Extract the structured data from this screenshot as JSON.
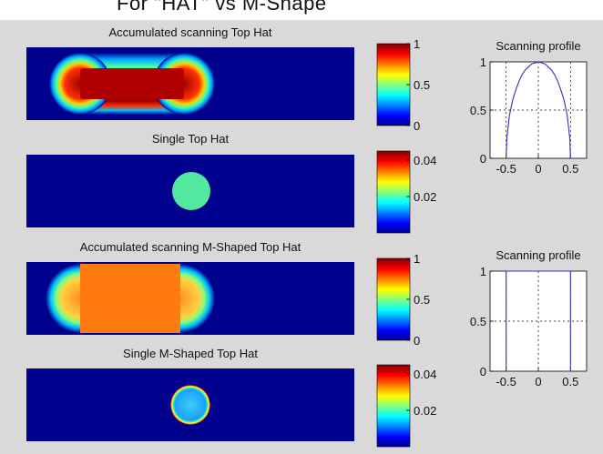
{
  "header": {
    "text": "For \"HAT\" vs M-Shape"
  },
  "colors": {
    "background": "#d9d9d9",
    "field": "#00008f",
    "jet": [
      "#00008f",
      "#0000ff",
      "#00ffff",
      "#ffff00",
      "#ff0000",
      "#800000"
    ]
  },
  "chart_data": [
    {
      "type": "heatmap",
      "id": "acc_tophat",
      "title": "Accumulated scanning Top Hat",
      "shape": "stadium",
      "fill_value": 1.0,
      "edge_profile": "tophat",
      "colorbar": {
        "ticks": [
          "0",
          "0.5",
          "1"
        ],
        "min": 0,
        "max": 1
      }
    },
    {
      "type": "heatmap",
      "id": "single_tophat",
      "title": "Single Top Hat",
      "shape": "disk",
      "fill_value": 0.022,
      "colorbar": {
        "ticks": [
          "0.02",
          "0.04"
        ],
        "min": 0,
        "max": 0.045
      }
    },
    {
      "type": "heatmap",
      "id": "acc_mshape",
      "title": "Accumulated scanning M-Shaped Top Hat",
      "shape": "stadium",
      "fill_value": 0.8,
      "edge_profile": "mshape",
      "colorbar": {
        "ticks": [
          "0",
          "0.5",
          "1"
        ],
        "min": 0,
        "max": 1
      }
    },
    {
      "type": "heatmap",
      "id": "single_mshape",
      "title": "Single M-Shaped Top Hat",
      "shape": "ring",
      "fill_value": 0.013,
      "rim_value": 0.045,
      "colorbar": {
        "ticks": [
          "0.02",
          "0.04"
        ],
        "min": 0,
        "max": 0.045
      }
    },
    {
      "type": "line",
      "id": "profile_tophat",
      "title": "Scanning profile",
      "xlim": [
        -0.75,
        0.75
      ],
      "ylim": [
        0,
        1
      ],
      "xticks": [
        "-0.5",
        "0",
        "0.5"
      ],
      "yticks": [
        "0",
        "0.5",
        "1"
      ],
      "grid": true,
      "x": [
        -0.5,
        -0.49,
        -0.45,
        -0.4,
        -0.35,
        -0.3,
        -0.25,
        -0.2,
        -0.15,
        -0.1,
        -0.05,
        0,
        0.05,
        0.1,
        0.15,
        0.2,
        0.25,
        0.3,
        0.35,
        0.4,
        0.45,
        0.49,
        0.5
      ],
      "y": [
        0,
        0.2,
        0.44,
        0.6,
        0.71,
        0.8,
        0.87,
        0.92,
        0.95,
        0.98,
        0.99,
        1.0,
        0.99,
        0.98,
        0.95,
        0.92,
        0.87,
        0.8,
        0.71,
        0.6,
        0.44,
        0.2,
        0
      ]
    },
    {
      "type": "line",
      "id": "profile_mshape",
      "title": "Scanning profile",
      "xlim": [
        -0.75,
        0.75
      ],
      "ylim": [
        0,
        1
      ],
      "xticks": [
        "-0.5",
        "0",
        "0.5"
      ],
      "yticks": [
        "0",
        "0.5",
        "1"
      ],
      "grid": true,
      "x": [
        -0.5,
        -0.5,
        0.5,
        0.5
      ],
      "y": [
        0,
        1,
        1,
        0
      ]
    }
  ]
}
